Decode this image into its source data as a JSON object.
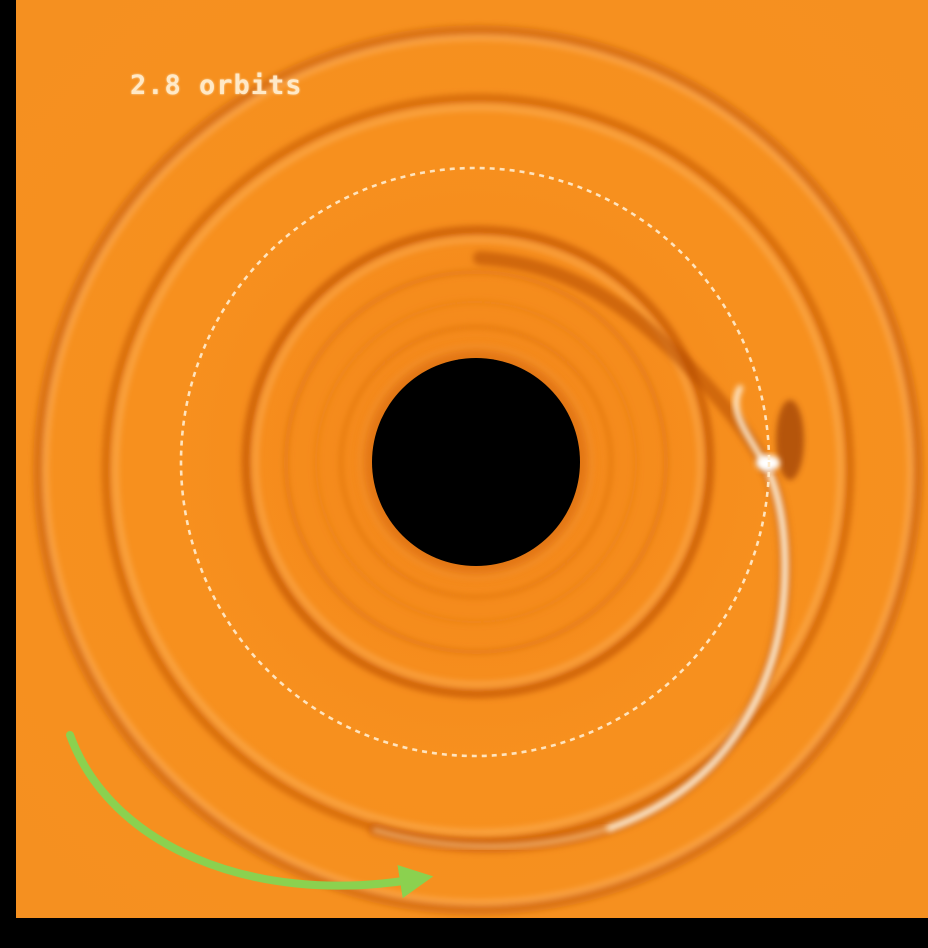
{
  "simulation": {
    "orbit_label": "2.8 orbits"
  },
  "colors": {
    "background": "#000000",
    "disk": "#f7901e",
    "gap_dark": "#c65a08",
    "spiral_highlight": "#fff4e0",
    "planet_orbit": "#ffe9c7",
    "star_hole": "#000000",
    "rotation_arrow": "#8bd14f"
  },
  "annotations": {
    "planet_orbit_style": "dashed",
    "rotation_direction": "counterclockwise"
  }
}
